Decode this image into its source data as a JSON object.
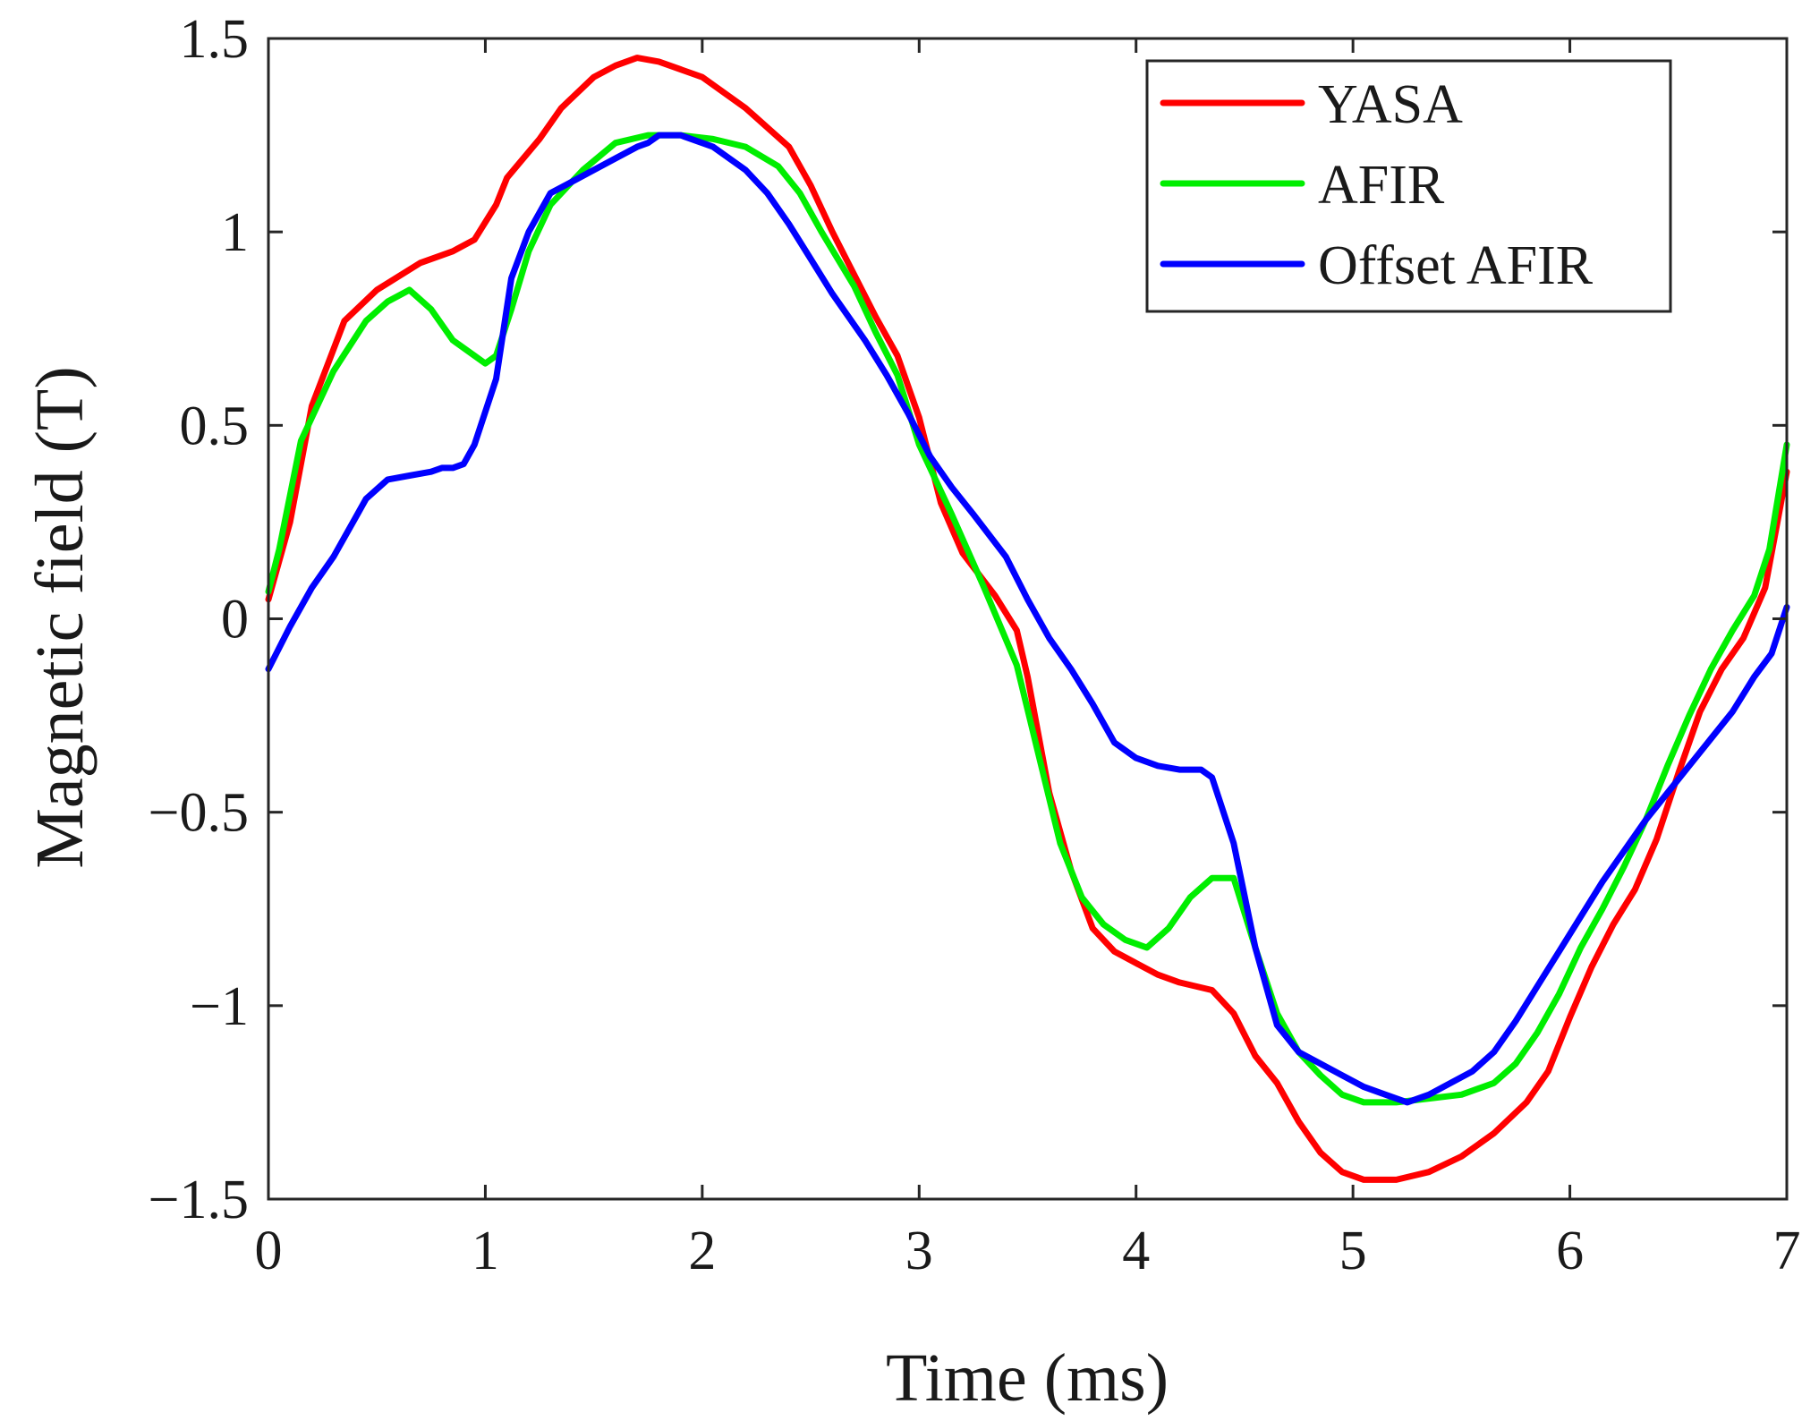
{
  "chart_data": {
    "type": "line",
    "title": "",
    "xlabel": "Time (ms)",
    "ylabel": "Magnetic field (T)",
    "xlim": [
      0,
      7
    ],
    "ylim": [
      -1.5,
      1.5
    ],
    "grid": false,
    "legend_position": "top-right",
    "xticks": [
      0,
      1,
      2,
      3,
      4,
      5,
      6,
      7
    ],
    "xtick_labels": [
      "0",
      "1",
      "2",
      "3",
      "4",
      "5",
      "6",
      "7"
    ],
    "yticks": [
      -1.5,
      -1,
      -0.5,
      0,
      0.5,
      1,
      1.5
    ],
    "ytick_labels": [
      "−1.5",
      "−1",
      "−0.5",
      "0",
      "0.5",
      "1",
      "1.5"
    ],
    "series": [
      {
        "name": "YASA",
        "color": "#ff0000",
        "points": [
          [
            0,
            0.05
          ],
          [
            0.1,
            0.25
          ],
          [
            0.2,
            0.55
          ],
          [
            0.35,
            0.77
          ],
          [
            0.5,
            0.85
          ],
          [
            0.7,
            0.92
          ],
          [
            0.85,
            0.95
          ],
          [
            0.95,
            0.98
          ],
          [
            1.05,
            1.07
          ],
          [
            1.1,
            1.14
          ],
          [
            1.25,
            1.24
          ],
          [
            1.35,
            1.32
          ],
          [
            1.5,
            1.4
          ],
          [
            1.6,
            1.43
          ],
          [
            1.7,
            1.45
          ],
          [
            1.8,
            1.44
          ],
          [
            2.0,
            1.4
          ],
          [
            2.2,
            1.32
          ],
          [
            2.4,
            1.22
          ],
          [
            2.5,
            1.12
          ],
          [
            2.6,
            1.0
          ],
          [
            2.8,
            0.78
          ],
          [
            2.9,
            0.68
          ],
          [
            3.0,
            0.52
          ],
          [
            3.1,
            0.3
          ],
          [
            3.2,
            0.17
          ],
          [
            3.35,
            0.06
          ],
          [
            3.45,
            -0.03
          ],
          [
            3.5,
            -0.15
          ],
          [
            3.6,
            -0.45
          ],
          [
            3.7,
            -0.65
          ],
          [
            3.8,
            -0.8
          ],
          [
            3.9,
            -0.86
          ],
          [
            4.0,
            -0.89
          ],
          [
            4.1,
            -0.92
          ],
          [
            4.2,
            -0.94
          ],
          [
            4.35,
            -0.96
          ],
          [
            4.45,
            -1.02
          ],
          [
            4.55,
            -1.13
          ],
          [
            4.65,
            -1.2
          ],
          [
            4.75,
            -1.3
          ],
          [
            4.85,
            -1.38
          ],
          [
            4.95,
            -1.43
          ],
          [
            5.05,
            -1.45
          ],
          [
            5.2,
            -1.45
          ],
          [
            5.35,
            -1.43
          ],
          [
            5.5,
            -1.39
          ],
          [
            5.65,
            -1.33
          ],
          [
            5.8,
            -1.25
          ],
          [
            5.9,
            -1.17
          ],
          [
            6.0,
            -1.03
          ],
          [
            6.1,
            -0.9
          ],
          [
            6.2,
            -0.79
          ],
          [
            6.3,
            -0.7
          ],
          [
            6.4,
            -0.57
          ],
          [
            6.5,
            -0.4
          ],
          [
            6.6,
            -0.24
          ],
          [
            6.7,
            -0.13
          ],
          [
            6.8,
            -0.05
          ],
          [
            6.9,
            0.08
          ],
          [
            7.0,
            0.38
          ]
        ]
      },
      {
        "name": "AFIR",
        "color": "#00ee00",
        "points": [
          [
            0,
            0.07
          ],
          [
            0.05,
            0.18
          ],
          [
            0.15,
            0.46
          ],
          [
            0.3,
            0.64
          ],
          [
            0.45,
            0.77
          ],
          [
            0.55,
            0.82
          ],
          [
            0.65,
            0.85
          ],
          [
            0.75,
            0.8
          ],
          [
            0.85,
            0.72
          ],
          [
            0.95,
            0.68
          ],
          [
            1.0,
            0.66
          ],
          [
            1.05,
            0.68
          ],
          [
            1.12,
            0.8
          ],
          [
            1.2,
            0.95
          ],
          [
            1.3,
            1.07
          ],
          [
            1.45,
            1.16
          ],
          [
            1.6,
            1.23
          ],
          [
            1.75,
            1.25
          ],
          [
            1.9,
            1.25
          ],
          [
            2.05,
            1.24
          ],
          [
            2.2,
            1.22
          ],
          [
            2.35,
            1.17
          ],
          [
            2.45,
            1.1
          ],
          [
            2.55,
            1.0
          ],
          [
            2.7,
            0.86
          ],
          [
            2.8,
            0.74
          ],
          [
            2.9,
            0.63
          ],
          [
            3.0,
            0.45
          ],
          [
            3.15,
            0.27
          ],
          [
            3.3,
            0.08
          ],
          [
            3.45,
            -0.12
          ],
          [
            3.55,
            -0.35
          ],
          [
            3.65,
            -0.58
          ],
          [
            3.75,
            -0.72
          ],
          [
            3.85,
            -0.79
          ],
          [
            3.95,
            -0.83
          ],
          [
            4.05,
            -0.85
          ],
          [
            4.15,
            -0.8
          ],
          [
            4.25,
            -0.72
          ],
          [
            4.35,
            -0.67
          ],
          [
            4.45,
            -0.67
          ],
          [
            4.55,
            -0.85
          ],
          [
            4.65,
            -1.02
          ],
          [
            4.75,
            -1.12
          ],
          [
            4.85,
            -1.18
          ],
          [
            4.95,
            -1.23
          ],
          [
            5.05,
            -1.25
          ],
          [
            5.2,
            -1.25
          ],
          [
            5.35,
            -1.24
          ],
          [
            5.5,
            -1.23
          ],
          [
            5.65,
            -1.2
          ],
          [
            5.75,
            -1.15
          ],
          [
            5.85,
            -1.07
          ],
          [
            5.95,
            -0.97
          ],
          [
            6.05,
            -0.85
          ],
          [
            6.15,
            -0.75
          ],
          [
            6.25,
            -0.64
          ],
          [
            6.35,
            -0.52
          ],
          [
            6.45,
            -0.38
          ],
          [
            6.55,
            -0.25
          ],
          [
            6.65,
            -0.13
          ],
          [
            6.75,
            -0.03
          ],
          [
            6.85,
            0.06
          ],
          [
            6.92,
            0.18
          ],
          [
            7.0,
            0.45
          ]
        ]
      },
      {
        "name": "Offset AFIR",
        "color": "#0000ff",
        "points": [
          [
            0,
            -0.13
          ],
          [
            0.1,
            -0.02
          ],
          [
            0.2,
            0.08
          ],
          [
            0.3,
            0.16
          ],
          [
            0.4,
            0.26
          ],
          [
            0.45,
            0.31
          ],
          [
            0.55,
            0.36
          ],
          [
            0.65,
            0.37
          ],
          [
            0.75,
            0.38
          ],
          [
            0.8,
            0.39
          ],
          [
            0.85,
            0.39
          ],
          [
            0.9,
            0.4
          ],
          [
            0.95,
            0.45
          ],
          [
            1.05,
            0.62
          ],
          [
            1.12,
            0.88
          ],
          [
            1.2,
            1.0
          ],
          [
            1.3,
            1.1
          ],
          [
            1.4,
            1.13
          ],
          [
            1.5,
            1.16
          ],
          [
            1.6,
            1.19
          ],
          [
            1.7,
            1.22
          ],
          [
            1.75,
            1.23
          ],
          [
            1.8,
            1.25
          ],
          [
            1.9,
            1.25
          ],
          [
            2.05,
            1.22
          ],
          [
            2.2,
            1.16
          ],
          [
            2.3,
            1.1
          ],
          [
            2.4,
            1.02
          ],
          [
            2.5,
            0.93
          ],
          [
            2.6,
            0.84
          ],
          [
            2.75,
            0.72
          ],
          [
            2.85,
            0.63
          ],
          [
            2.95,
            0.53
          ],
          [
            3.05,
            0.42
          ],
          [
            3.15,
            0.34
          ],
          [
            3.25,
            0.27
          ],
          [
            3.4,
            0.16
          ],
          [
            3.5,
            0.05
          ],
          [
            3.6,
            -0.05
          ],
          [
            3.7,
            -0.13
          ],
          [
            3.8,
            -0.22
          ],
          [
            3.9,
            -0.32
          ],
          [
            4.0,
            -0.36
          ],
          [
            4.1,
            -0.38
          ],
          [
            4.2,
            -0.39
          ],
          [
            4.3,
            -0.39
          ],
          [
            4.35,
            -0.41
          ],
          [
            4.45,
            -0.58
          ],
          [
            4.55,
            -0.85
          ],
          [
            4.65,
            -1.05
          ],
          [
            4.75,
            -1.12
          ],
          [
            4.85,
            -1.15
          ],
          [
            4.95,
            -1.18
          ],
          [
            5.05,
            -1.21
          ],
          [
            5.15,
            -1.23
          ],
          [
            5.25,
            -1.25
          ],
          [
            5.35,
            -1.23
          ],
          [
            5.45,
            -1.2
          ],
          [
            5.55,
            -1.17
          ],
          [
            5.65,
            -1.12
          ],
          [
            5.75,
            -1.04
          ],
          [
            5.85,
            -0.95
          ],
          [
            5.95,
            -0.86
          ],
          [
            6.05,
            -0.77
          ],
          [
            6.15,
            -0.68
          ],
          [
            6.25,
            -0.6
          ],
          [
            6.35,
            -0.52
          ],
          [
            6.45,
            -0.45
          ],
          [
            6.55,
            -0.38
          ],
          [
            6.65,
            -0.31
          ],
          [
            6.75,
            -0.24
          ],
          [
            6.85,
            -0.15
          ],
          [
            6.93,
            -0.09
          ],
          [
            7.0,
            0.03
          ]
        ]
      }
    ]
  }
}
